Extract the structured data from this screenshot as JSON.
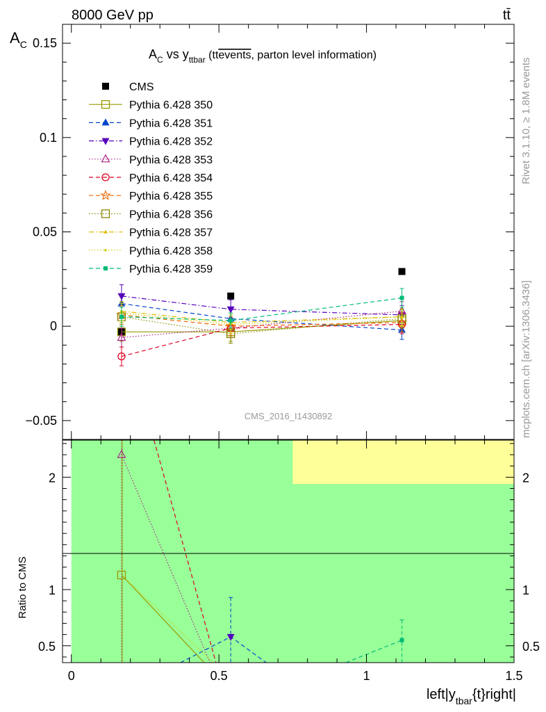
{
  "header": {
    "energy_label": "8000 GeV pp",
    "process_label": "tt̄"
  },
  "side_labels": {
    "rivet": "Rivet 3.1.10, ≥ 1.8M events",
    "source": "mcplots.cern.ch [arXiv:1306.3436]"
  },
  "analysis_id": "CMS_2016_I1430892",
  "colors": {
    "band_green": "#99ff99",
    "band_yellow": "#ffff99",
    "cms": "#000000"
  },
  "chart_data": [
    {
      "type": "scatter",
      "title": "A_C vs y_ttbar (tt̄events, parton level information)",
      "title_parts": {
        "main": "A",
        "main_sub": "C",
        "vs": " vs y",
        "vs_sub": "ttbar",
        "paren_open": " (tt",
        "overline": "events",
        "rest": ", parton level information)"
      },
      "ylabel": "A",
      "ylabel_sub": "C",
      "xlim": [
        -0.03,
        1.5
      ],
      "ylim": [
        -0.06,
        0.16
      ],
      "x": [
        0.17,
        0.54,
        1.12
      ],
      "y_ticks": [
        {
          "v": -0.05,
          "label": "−0.05"
        },
        {
          "v": 0,
          "label": "0"
        },
        {
          "v": 0.05,
          "label": "0.05"
        },
        {
          "v": 0.1,
          "label": "0.1"
        },
        {
          "v": 0.15,
          "label": "0.15"
        }
      ],
      "series": [
        {
          "name": "CMS",
          "color": "#000000",
          "marker": "square_filled",
          "line": "none",
          "values": [
            -0.003,
            0.016,
            0.029
          ],
          "errors": [
            0,
            0,
            0
          ]
        },
        {
          "name": "Pythia 6.428 350",
          "color": "#999900",
          "marker": "square_open",
          "line": "solid",
          "values": [
            -0.003,
            -0.003,
            0.003
          ],
          "errors": [
            0.005,
            0.005,
            0.005
          ]
        },
        {
          "name": "Pythia 6.428 351",
          "color": "#0044cc",
          "marker": "triangle_up_filled",
          "line": "dashed",
          "values": [
            0.012,
            0.004,
            -0.002
          ],
          "errors": [
            0.005,
            0.005,
            0.005
          ]
        },
        {
          "name": "Pythia 6.428 352",
          "color": "#5500bb",
          "marker": "triangle_down_filled",
          "line": "dashdot",
          "values": [
            0.016,
            0.009,
            0.006
          ],
          "errors": [
            0.006,
            0.005,
            0.005
          ]
        },
        {
          "name": "Pythia 6.428 353",
          "color": "#aa2288",
          "marker": "triangle_up_open",
          "line": "dotted",
          "values": [
            -0.006,
            -0.001,
            0.008
          ],
          "errors": [
            0.005,
            0.005,
            0.005
          ]
        },
        {
          "name": "Pythia 6.428 354",
          "color": "#dd0022",
          "marker": "circle_open",
          "line": "dashed",
          "values": [
            -0.016,
            -0.001,
            0.001
          ],
          "errors": [
            0.005,
            0.005,
            0.005
          ]
        },
        {
          "name": "Pythia 6.428 355",
          "color": "#ee6600",
          "marker": "star_open",
          "line": "dashed",
          "values": [
            0.006,
            0.0,
            0.002
          ],
          "errors": [
            0.005,
            0.005,
            0.005
          ]
        },
        {
          "name": "Pythia 6.428 356",
          "color": "#888800",
          "marker": "square_open",
          "line": "dotted",
          "values": [
            0.005,
            -0.004,
            0.004
          ],
          "errors": [
            0.005,
            0.005,
            0.005
          ]
        },
        {
          "name": "Pythia 6.428 357",
          "color": "#ddbb00",
          "marker": "tri_small",
          "line": "dashdot",
          "values": [
            0.008,
            0.002,
            0.005
          ],
          "errors": [
            0.005,
            0.005,
            0.005
          ]
        },
        {
          "name": "Pythia 6.428 358",
          "color": "#cccc00",
          "marker": "dot",
          "line": "dotted",
          "values": [
            0.007,
            0.001,
            0.005
          ],
          "errors": [
            0.005,
            0.005,
            0.005
          ]
        },
        {
          "name": "Pythia 6.428 359",
          "color": "#00bb77",
          "marker": "square_small_filled",
          "line": "dashed",
          "values": [
            0.005,
            0.003,
            0.015
          ],
          "errors": [
            0.005,
            0.004,
            0.005
          ]
        }
      ]
    },
    {
      "type": "line",
      "ylabel": "Ratio to CMS",
      "xlabel": "left|y_tbar{t}right|",
      "xlabel_parts": {
        "a": "left|y",
        "sub": "tbar",
        "b": "{t}right|"
      },
      "xlim": [
        -0.03,
        1.5
      ],
      "ylim": [
        0.35,
        2.33
      ],
      "x_ticks": [
        {
          "v": 0,
          "label": "0"
        },
        {
          "v": 0.5,
          "label": "0.5"
        },
        {
          "v": 1,
          "label": "1"
        },
        {
          "v": 1.5,
          "label": "1.5"
        }
      ],
      "y_ticks": [
        {
          "v": 0.5,
          "label": "0.5"
        },
        {
          "v": 1,
          "label": "1"
        },
        {
          "v": 2,
          "label": "2"
        }
      ],
      "bands": [
        {
          "name": "green",
          "x": [
            0,
            1.5
          ],
          "y": [
            0.35,
            2.33
          ]
        },
        {
          "name": "yellow",
          "x": [
            0.75,
            1.5
          ],
          "y": [
            1.94,
            2.33
          ]
        }
      ],
      "series": [
        {
          "name": "Pythia 6.428 350",
          "points": [
            [
              0.17,
              1.13
            ],
            [
              0.45,
              0.35
            ]
          ]
        },
        {
          "name": "Pythia 6.428 351",
          "points": [
            [
              0.37,
              0.35
            ],
            [
              0.54,
              0.58
            ],
            [
              0.66,
              0.35
            ]
          ]
        },
        {
          "name": "Pythia 6.428 353",
          "points": [
            [
              0.17,
              2.2
            ],
            [
              0.47,
              0.35
            ]
          ]
        },
        {
          "name": "Pythia 6.428 354",
          "points": [
            [
              0.28,
              2.33
            ],
            [
              0.49,
              0.35
            ]
          ]
        },
        {
          "name": "Pythia 6.428 358",
          "points": [
            [
              0.17,
              1.13
            ],
            [
              0.48,
              0.35
            ]
          ]
        },
        {
          "name": "Pythia 6.428 359",
          "points": [
            [
              0.93,
              0.35
            ],
            [
              1.12,
              0.55
            ]
          ]
        }
      ]
    }
  ]
}
